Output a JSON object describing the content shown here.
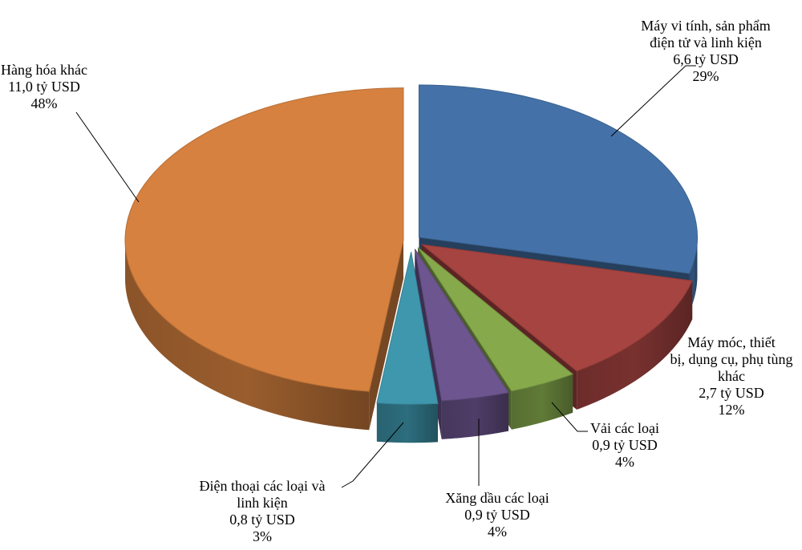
{
  "chart_data": {
    "type": "pie",
    "style": "3d-exploded",
    "unit": "tỷ USD",
    "slices": [
      {
        "lines": [
          "Máy vi tính, sản phẩm",
          "điện tử và linh kiện",
          "6,6 tỷ USD",
          "29%"
        ],
        "value": 6.6,
        "percent": 29,
        "color": "#4472a8"
      },
      {
        "lines": [
          "Máy móc, thiết",
          "bị, dụng cụ, phụ tùng",
          "khác",
          "2,7 tỷ USD",
          "12%"
        ],
        "value": 2.7,
        "percent": 12,
        "color": "#a64441"
      },
      {
        "lines": [
          "Vải các loại",
          "0,9 tỷ USD",
          "4%"
        ],
        "value": 0.9,
        "percent": 4,
        "color": "#86a94c"
      },
      {
        "lines": [
          "Xăng dầu các loại",
          "0,9 tỷ USD",
          "4%"
        ],
        "value": 0.9,
        "percent": 4,
        "color": "#6d558f"
      },
      {
        "lines": [
          "Điện thoại các loại và",
          "linh kiện",
          "0,8 tỷ USD",
          "3%"
        ],
        "value": 0.8,
        "percent": 3,
        "color": "#3f97ad"
      },
      {
        "lines": [
          "Hàng hóa khác",
          "11,0 tỷ USD",
          "48%"
        ],
        "value": 11.0,
        "percent": 48,
        "color": "#d6813f"
      }
    ]
  }
}
